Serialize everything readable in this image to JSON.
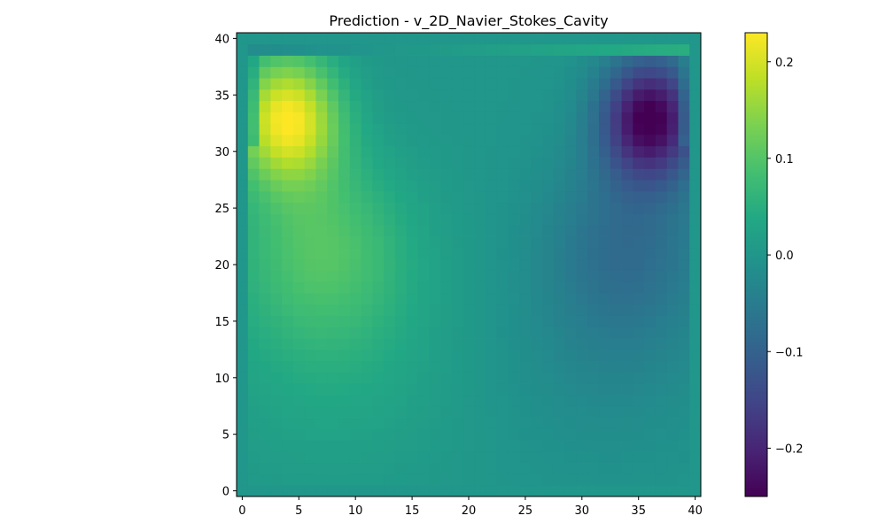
{
  "chart_data": {
    "type": "heatmap",
    "title": "Prediction - v_2D_Navier_Stokes_Cavity",
    "xlabel": "",
    "ylabel": "",
    "xlim": [
      -0.5,
      40.5
    ],
    "ylim": [
      -0.5,
      40.5
    ],
    "grid_size": [
      41,
      41
    ],
    "xticks": [
      0,
      5,
      10,
      15,
      20,
      25,
      30,
      35,
      40
    ],
    "yticks": [
      0,
      5,
      10,
      15,
      20,
      25,
      30,
      35,
      40
    ],
    "xtick_labels": [
      "0",
      "5",
      "10",
      "15",
      "20",
      "25",
      "30",
      "35",
      "40"
    ],
    "ytick_labels": [
      "0",
      "5",
      "10",
      "15",
      "20",
      "25",
      "30",
      "35",
      "40"
    ],
    "colormap": "viridis",
    "grid": false,
    "colorbar": {
      "vmin": -0.25,
      "vmax": 0.23,
      "ticks": [
        0.2,
        0.1,
        0.0,
        -0.1,
        -0.2
      ],
      "tick_labels": [
        "0.2",
        "0.1",
        "0.0",
        "−0.1",
        "−0.2"
      ]
    },
    "field_features": {
      "background_value": 0.0,
      "positive_peak": {
        "x": 4,
        "y": 33,
        "value": 0.22
      },
      "negative_peak": {
        "x": 36,
        "y": 33,
        "value": -0.25
      },
      "lid_row": {
        "y": 39,
        "x_range": [
          1,
          39
        ],
        "value_left": -0.02,
        "value_right": 0.05
      }
    }
  }
}
